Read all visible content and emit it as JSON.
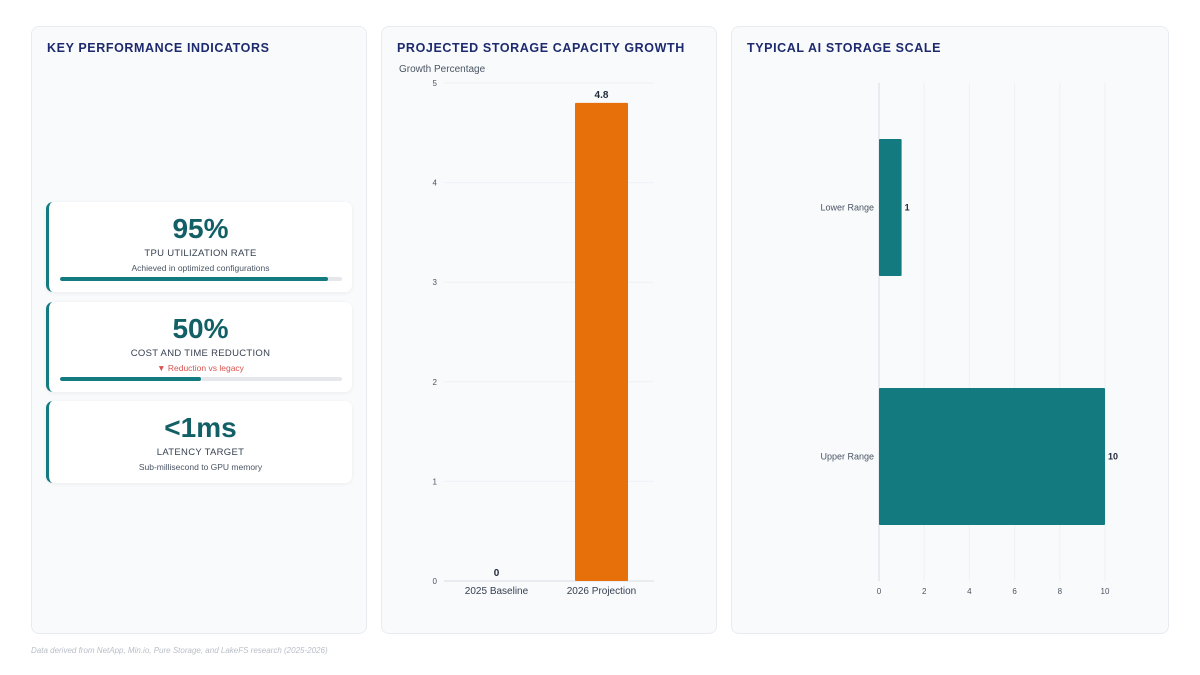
{
  "kpi_panel": {
    "title": "KEY PERFORMANCE INDICATORS",
    "cards": [
      {
        "value": "95%",
        "label": "TPU UTILIZATION RATE",
        "sub": "Achieved in optimized configurations",
        "progress": 0.95
      },
      {
        "value": "50%",
        "label": "COST AND TIME REDUCTION",
        "sub": "▼ Reduction vs legacy",
        "progress": 0.5
      },
      {
        "value": "<1ms",
        "label": "LATENCY TARGET",
        "sub": "Sub-millisecond to GPU memory"
      }
    ]
  },
  "colors": {
    "teal": "#137a80",
    "orange": "#e8700a",
    "title": "#1e2a6e",
    "negative": "#d9534f"
  },
  "chart_data": [
    {
      "type": "bar",
      "title": "PROJECTED STORAGE CAPACITY GROWTH",
      "ylabel": "Growth Percentage",
      "categories": [
        "2025 Baseline",
        "2026 Projection"
      ],
      "values": [
        0,
        4.8
      ],
      "ylim": [
        0,
        5
      ],
      "yticks": [
        0,
        1,
        2,
        3,
        4,
        5
      ],
      "grid": true,
      "data_labels": true
    },
    {
      "type": "bar",
      "orientation": "horizontal",
      "title": "TYPICAL AI STORAGE SCALE",
      "categories": [
        "Lower Range",
        "Upper Range"
      ],
      "values": [
        1,
        10
      ],
      "xlim": [
        0,
        10
      ],
      "xticks": [
        0,
        2,
        4,
        6,
        8,
        10
      ],
      "grid": true,
      "data_labels": true
    }
  ],
  "footer": "Data derived from NetApp, Min.io, Pure Storage, and LakeFS research (2025-2026)"
}
